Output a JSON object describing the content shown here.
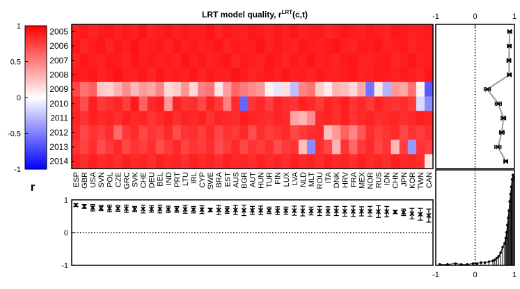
{
  "chart_data": [
    {
      "type": "heatmap",
      "title": "LRT model quality, r",
      "title_superscript": "LRT",
      "title_suffix": "(c,t)",
      "rows": [
        "2005",
        "2006",
        "2007",
        "2008",
        "2009",
        "2010",
        "2011",
        "2012",
        "2013",
        "2014"
      ],
      "columns": [
        "ESP",
        "GBR",
        "USA",
        "SVN",
        "POL",
        "CZE",
        "GRC",
        "SVK",
        "CHE",
        "DEU",
        "BEL",
        "IND",
        "PRT",
        "LTU",
        "IRL",
        "CYP",
        "SWE",
        "BRA",
        "EST",
        "AUS",
        "BGR",
        "AUT",
        "HUN",
        "TUR",
        "FIN",
        "LUX",
        "LVA",
        "NLD",
        "MLT",
        "ROU",
        "ITA",
        "DNK",
        "HRV",
        "FRA",
        "MEX",
        "NOR",
        "RUS",
        "IDN",
        "CHN",
        "JPN",
        "KOR",
        "TWN",
        "CAN"
      ],
      "values": [
        [
          0.88,
          0.9,
          0.86,
          0.89,
          0.91,
          0.87,
          0.9,
          0.88,
          0.92,
          0.86,
          0.89,
          0.91,
          0.87,
          0.9,
          0.88,
          0.89,
          0.92,
          0.86,
          0.9,
          0.88,
          0.87,
          0.91,
          0.89,
          0.86,
          0.9,
          0.88,
          0.91,
          0.87,
          0.89,
          0.9,
          0.86,
          0.88,
          0.91,
          0.89,
          0.87,
          0.9,
          0.88,
          0.86,
          0.91,
          0.89,
          0.87,
          0.88,
          0.9
        ],
        [
          0.9,
          0.85,
          0.89,
          0.91,
          0.86,
          0.9,
          0.88,
          0.92,
          0.87,
          0.89,
          0.9,
          0.86,
          0.91,
          0.88,
          0.9,
          0.87,
          0.89,
          0.91,
          0.86,
          0.9,
          0.88,
          0.89,
          0.92,
          0.87,
          0.9,
          0.88,
          0.86,
          0.91,
          0.89,
          0.87,
          0.9,
          0.92,
          0.88,
          0.86,
          0.9,
          0.89,
          0.91,
          0.87,
          0.88,
          0.9,
          0.86,
          0.89,
          0.88
        ],
        [
          0.86,
          0.91,
          0.88,
          0.87,
          0.9,
          0.89,
          0.86,
          0.91,
          0.88,
          0.9,
          0.87,
          0.89,
          0.86,
          0.92,
          0.88,
          0.9,
          0.87,
          0.89,
          0.91,
          0.86,
          0.9,
          0.88,
          0.87,
          0.91,
          0.89,
          0.86,
          0.9,
          0.88,
          0.92,
          0.87,
          0.89,
          0.86,
          0.9,
          0.91,
          0.88,
          0.87,
          0.89,
          0.9,
          0.86,
          0.88,
          0.91,
          0.87,
          0.89
        ],
        [
          0.89,
          0.88,
          0.91,
          0.86,
          0.89,
          0.92,
          0.88,
          0.87,
          0.9,
          0.86,
          0.91,
          0.88,
          0.89,
          0.87,
          0.91,
          0.86,
          0.9,
          0.88,
          0.87,
          0.92,
          0.89,
          0.86,
          0.88,
          0.9,
          0.87,
          0.91,
          0.88,
          0.89,
          0.86,
          0.9,
          0.88,
          0.87,
          0.89,
          0.91,
          0.86,
          0.88,
          0.9,
          0.89,
          0.87,
          0.9,
          0.88,
          0.86,
          0.91
        ],
        [
          0.72,
          0.55,
          0.62,
          0.22,
          0.18,
          0.3,
          0.45,
          0.28,
          0.4,
          0.35,
          0.48,
          0.15,
          0.2,
          0.42,
          0.15,
          0.5,
          0.55,
          0.1,
          0.38,
          0.6,
          0.52,
          0.45,
          0.4,
          0.05,
          -0.1,
          0.12,
          -0.25,
          0.48,
          0.55,
          0.2,
          0.08,
          0.3,
          0.25,
          0.15,
          0.35,
          -0.55,
          0.1,
          -0.3,
          0.4,
          0.35,
          0.55,
          0.05,
          -0.65
        ],
        [
          0.85,
          0.7,
          0.88,
          0.78,
          0.82,
          0.86,
          0.76,
          0.9,
          0.62,
          0.84,
          0.88,
          0.4,
          0.86,
          0.8,
          0.82,
          0.72,
          0.86,
          0.78,
          0.5,
          0.84,
          -0.6,
          0.8,
          0.84,
          0.76,
          0.86,
          0.82,
          0.8,
          0.88,
          0.84,
          0.78,
          0.86,
          0.82,
          0.88,
          0.8,
          0.84,
          0.78,
          0.86,
          0.82,
          0.8,
          0.84,
          0.78,
          -0.15,
          -0.45
        ],
        [
          0.86,
          0.8,
          0.88,
          0.84,
          0.86,
          0.82,
          0.88,
          0.84,
          0.86,
          0.8,
          0.84,
          0.88,
          0.82,
          0.86,
          0.84,
          0.88,
          0.8,
          0.86,
          0.84,
          0.82,
          0.88,
          0.86,
          0.84,
          0.82,
          0.86,
          0.84,
          0.36,
          0.3,
          0.45,
          0.84,
          0.86,
          0.82,
          0.88,
          0.8,
          0.84,
          0.86,
          0.82,
          0.84,
          0.86,
          0.82,
          0.84,
          0.88,
          0.86
        ],
        [
          0.84,
          0.72,
          0.8,
          0.76,
          0.82,
          0.58,
          0.78,
          0.84,
          0.72,
          0.8,
          0.76,
          0.84,
          0.7,
          0.8,
          0.82,
          0.76,
          0.84,
          0.72,
          0.8,
          0.78,
          0.84,
          0.7,
          0.82,
          0.76,
          0.8,
          0.84,
          0.72,
          0.78,
          0.82,
          0.84,
          0.25,
          0.4,
          0.62,
          0.48,
          0.66,
          0.82,
          0.76,
          0.8,
          0.84,
          0.72,
          0.8,
          0.76,
          0.82
        ],
        [
          0.8,
          0.74,
          0.82,
          0.7,
          0.78,
          0.84,
          0.72,
          0.8,
          0.76,
          0.82,
          0.7,
          0.78,
          0.84,
          0.74,
          0.8,
          0.76,
          0.82,
          0.7,
          0.78,
          0.84,
          0.72,
          0.8,
          0.76,
          0.82,
          0.7,
          0.78,
          0.8,
          0.25,
          -0.45,
          0.82,
          0.72,
          0.3,
          0.8,
          0.6,
          0.78,
          0.84,
          0.72,
          0.8,
          0.28,
          0.76,
          -0.4,
          0.8,
          0.76
        ],
        [
          0.86,
          0.82,
          0.88,
          0.84,
          0.86,
          0.82,
          0.88,
          0.84,
          0.86,
          0.82,
          0.88,
          0.84,
          0.86,
          0.82,
          0.88,
          0.84,
          0.86,
          0.82,
          0.88,
          0.84,
          0.86,
          0.82,
          0.88,
          0.84,
          0.86,
          0.82,
          0.88,
          0.84,
          0.86,
          0.82,
          0.88,
          0.84,
          0.86,
          0.82,
          0.88,
          0.84,
          0.86,
          0.82,
          0.88,
          0.84,
          0.86,
          0.82,
          0.1
        ]
      ],
      "colorbar": {
        "label": "r",
        "ticks": [
          1,
          0.5,
          0,
          -0.5,
          -1
        ],
        "range": [
          -1,
          1
        ]
      },
      "colors": {
        "high": "#ff0000",
        "mid": "#ffffff",
        "low": "#0000ff"
      }
    },
    {
      "type": "scatter",
      "orientation": "horizontal-categories",
      "categories_ref": "columns",
      "marker": "x",
      "values": [
        0.84,
        0.8,
        0.76,
        0.75,
        0.74,
        0.74,
        0.73,
        0.72,
        0.72,
        0.72,
        0.72,
        0.71,
        0.71,
        0.71,
        0.7,
        0.7,
        0.69,
        0.69,
        0.69,
        0.69,
        0.68,
        0.68,
        0.68,
        0.68,
        0.67,
        0.67,
        0.67,
        0.66,
        0.66,
        0.66,
        0.66,
        0.66,
        0.65,
        0.65,
        0.65,
        0.65,
        0.64,
        0.64,
        0.63,
        0.62,
        0.58,
        0.56,
        0.52
      ],
      "errors": [
        0.04,
        0.06,
        0.1,
        0.08,
        0.1,
        0.09,
        0.11,
        0.08,
        0.12,
        0.1,
        0.12,
        0.1,
        0.09,
        0.12,
        0.1,
        0.12,
        0.05,
        0.14,
        0.1,
        0.14,
        0.16,
        0.12,
        0.13,
        0.1,
        0.12,
        0.11,
        0.14,
        0.15,
        0.12,
        0.14,
        0.13,
        0.14,
        0.15,
        0.16,
        0.14,
        0.15,
        0.18,
        0.16,
        0.05,
        0.1,
        0.16,
        0.18,
        0.2
      ],
      "ylim": [
        -1,
        1
      ],
      "yticks": [
        1,
        0,
        -1
      ],
      "reference_line": 0
    },
    {
      "type": "line",
      "orientation": "vertical",
      "categories_ref": "rows",
      "marker": "x",
      "values": [
        0.88,
        0.87,
        0.86,
        0.87,
        0.31,
        0.59,
        0.72,
        0.68,
        0.58,
        0.78
      ],
      "errors": [
        0.05,
        0.05,
        0.05,
        0.05,
        0.08,
        0.08,
        0.06,
        0.06,
        0.08,
        0.05
      ],
      "xlim": [
        -1,
        1
      ],
      "xticks": [
        -1,
        0,
        1
      ],
      "reference_line": 0
    },
    {
      "type": "bar",
      "orientation": "stem",
      "x": [
        -0.9,
        -0.7,
        -0.5,
        -0.35,
        -0.2,
        -0.05,
        0.05,
        0.15,
        0.25,
        0.35,
        0.45,
        0.5,
        0.55,
        0.6,
        0.65,
        0.7,
        0.75,
        0.78,
        0.8,
        0.82,
        0.84,
        0.86,
        0.88,
        0.9,
        0.92,
        0.94,
        0.96,
        0.98
      ],
      "values": [
        0.01,
        0.01,
        0.02,
        0.01,
        0.01,
        0.02,
        0.02,
        0.03,
        0.03,
        0.04,
        0.05,
        0.06,
        0.08,
        0.1,
        0.14,
        0.2,
        0.24,
        0.3,
        0.36,
        0.44,
        0.52,
        0.6,
        0.7,
        0.78,
        0.86,
        0.94,
        0.99,
        0.97
      ],
      "xlim": [
        -1,
        1
      ],
      "xticks": [
        -1,
        0,
        1
      ],
      "reference_line": 0
    }
  ]
}
